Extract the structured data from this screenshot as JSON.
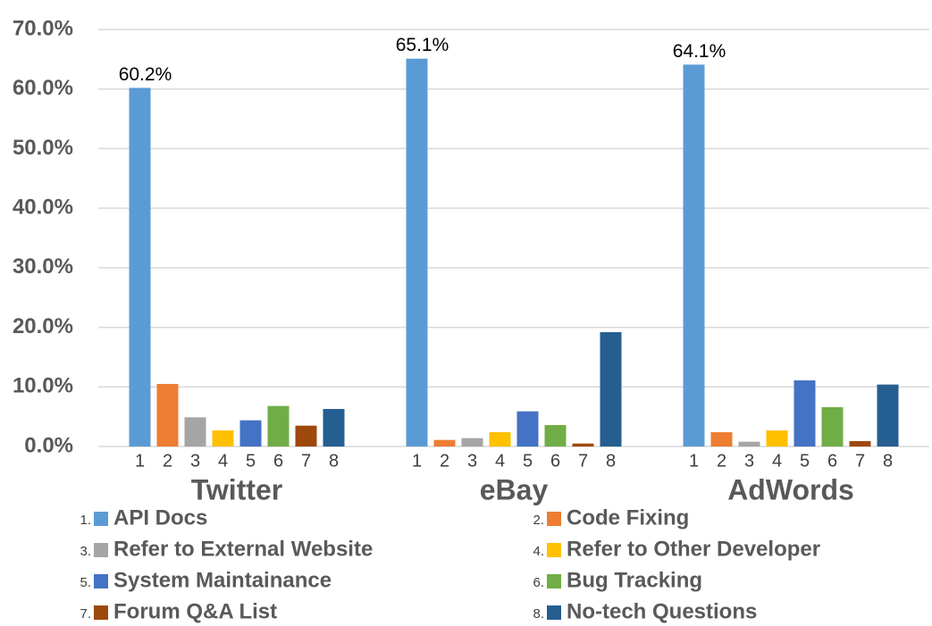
{
  "chart_data": {
    "type": "bar",
    "categories": [
      "Twitter",
      "eBay",
      "AdWords"
    ],
    "bar_labels": [
      "1",
      "2",
      "3",
      "4",
      "5",
      "6",
      "7",
      "8"
    ],
    "series": [
      {
        "name": "API Docs",
        "marker": "1.",
        "color": "#5b9bd5",
        "values": [
          60.2,
          65.1,
          64.1
        ],
        "value_labels": [
          "60.2%",
          "65.1%",
          "64.1%"
        ]
      },
      {
        "name": "Code Fixing",
        "marker": "2.",
        "color": "#ed7d31",
        "values": [
          10.5,
          1.1,
          2.4
        ]
      },
      {
        "name": "Refer to External Website",
        "marker": "3.",
        "color": "#a5a5a5",
        "values": [
          4.9,
          1.4,
          0.8
        ]
      },
      {
        "name": "Refer to Other Developer",
        "marker": "4.",
        "color": "#ffc000",
        "values": [
          2.7,
          2.4,
          2.7
        ]
      },
      {
        "name": "System Maintainance",
        "marker": "5.",
        "color": "#4472c4",
        "values": [
          4.4,
          5.9,
          11.1
        ]
      },
      {
        "name": "Bug Tracking",
        "marker": "6.",
        "color": "#70ad47",
        "values": [
          6.8,
          3.6,
          6.6
        ]
      },
      {
        "name": "Forum Q&A List",
        "marker": "7.",
        "color": "#9e480e",
        "values": [
          3.5,
          0.5,
          0.9
        ]
      },
      {
        "name": "No-tech Questions",
        "marker": "8.",
        "color": "#255e91",
        "values": [
          6.3,
          19.2,
          10.4
        ]
      }
    ],
    "ylim": [
      0,
      70
    ],
    "yticks": [
      {
        "value": 0,
        "label": "0.0%"
      },
      {
        "value": 10,
        "label": "10.0%"
      },
      {
        "value": 20,
        "label": "20.0%"
      },
      {
        "value": 30,
        "label": "30.0%"
      },
      {
        "value": 40,
        "label": "40.0%"
      },
      {
        "value": 50,
        "label": "50.0%"
      },
      {
        "value": 60,
        "label": "60.0%"
      },
      {
        "value": 70,
        "label": "70.0%"
      }
    ],
    "grid": true
  }
}
